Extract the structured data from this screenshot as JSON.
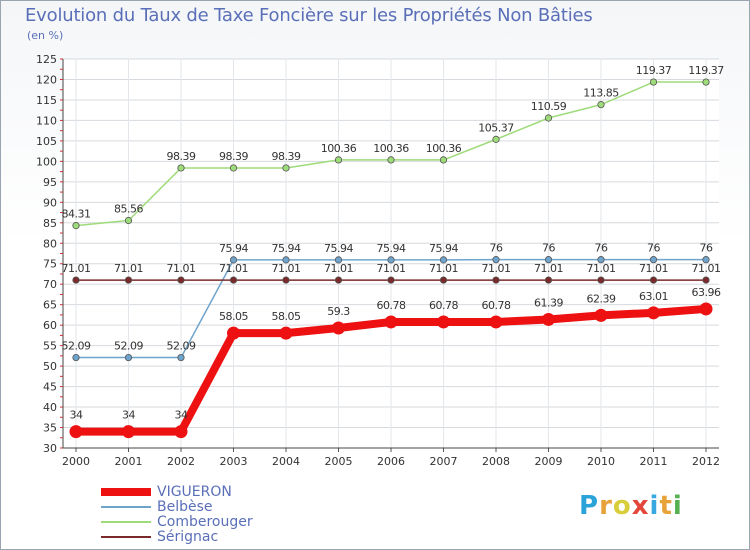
{
  "title": "Evolution du Taux de Taxe Foncière sur les Propriétés Non Bâties",
  "unit": "(en %)",
  "brand": {
    "text": "Proxiti",
    "letters": [
      "P",
      "r",
      "o",
      "x",
      "i",
      "t",
      "i"
    ],
    "colors": [
      "#2aa3d8",
      "#e8a23a",
      "#d8ce3c",
      "#e3463a",
      "#3aa8e0",
      "#e8a23a",
      "#55b050"
    ]
  },
  "chart_data": {
    "type": "line",
    "title": "Evolution du Taux de Taxe Foncière sur les Propriétés Non Bâties",
    "ylabel": "(en %)",
    "xlabel": "",
    "x": [
      "2000",
      "2001",
      "2002",
      "2003",
      "2004",
      "2005",
      "2006",
      "2007",
      "2008",
      "2009",
      "2010",
      "2011",
      "2012"
    ],
    "ylim": [
      30,
      125
    ],
    "yticks": [
      30,
      35,
      40,
      45,
      50,
      55,
      60,
      65,
      70,
      75,
      80,
      85,
      90,
      95,
      100,
      105,
      110,
      115,
      120,
      125
    ],
    "grid": true,
    "legend_position": "bottom-left",
    "series": [
      {
        "name": "VIGUERON",
        "color": "#ee1111",
        "emphasis": true,
        "values": [
          34,
          34,
          34,
          58.05,
          58.05,
          59.3,
          60.78,
          60.78,
          60.78,
          61.39,
          62.39,
          63.01,
          63.96
        ],
        "labels": [
          "34",
          "34",
          "34",
          "58.05",
          "58.05",
          "59.3",
          "60.78",
          "60.78",
          "60.78",
          "61.39",
          "62.39",
          "63.01",
          "63.96"
        ]
      },
      {
        "name": "Belbèse",
        "color": "#6ea3cc",
        "emphasis": false,
        "values": [
          52.09,
          52.09,
          52.09,
          75.94,
          75.94,
          75.94,
          75.94,
          75.94,
          76,
          76,
          76,
          76,
          76
        ],
        "labels": [
          "52.09",
          "52.09",
          "52.09",
          "75.94",
          "75.94",
          "75.94",
          "75.94",
          "75.94",
          "76",
          "76",
          "76",
          "76",
          "76"
        ]
      },
      {
        "name": "Comberouger",
        "color": "#9edb7a",
        "emphasis": false,
        "values": [
          84.31,
          85.56,
          98.39,
          98.39,
          98.39,
          100.36,
          100.36,
          100.36,
          105.37,
          110.59,
          113.85,
          119.37,
          119.37
        ],
        "labels": [
          "84.31",
          "85.56",
          "98.39",
          "98.39",
          "98.39",
          "100.36",
          "100.36",
          "100.36",
          "105.37",
          "110.59",
          "113.85",
          "119.37",
          "119.37"
        ]
      },
      {
        "name": "Sérignac",
        "color": "#7a2a2a",
        "emphasis": false,
        "values": [
          71.01,
          71.01,
          71.01,
          71.01,
          71.01,
          71.01,
          71.01,
          71.01,
          71.01,
          71.01,
          71.01,
          71.01,
          71.01
        ],
        "labels": [
          "71.01",
          "71.01",
          "71.01",
          "71.01",
          "71.01",
          "71.01",
          "71.01",
          "71.01",
          "71.01",
          "71.01",
          "71.01",
          "71.01",
          "71.01"
        ]
      }
    ]
  }
}
